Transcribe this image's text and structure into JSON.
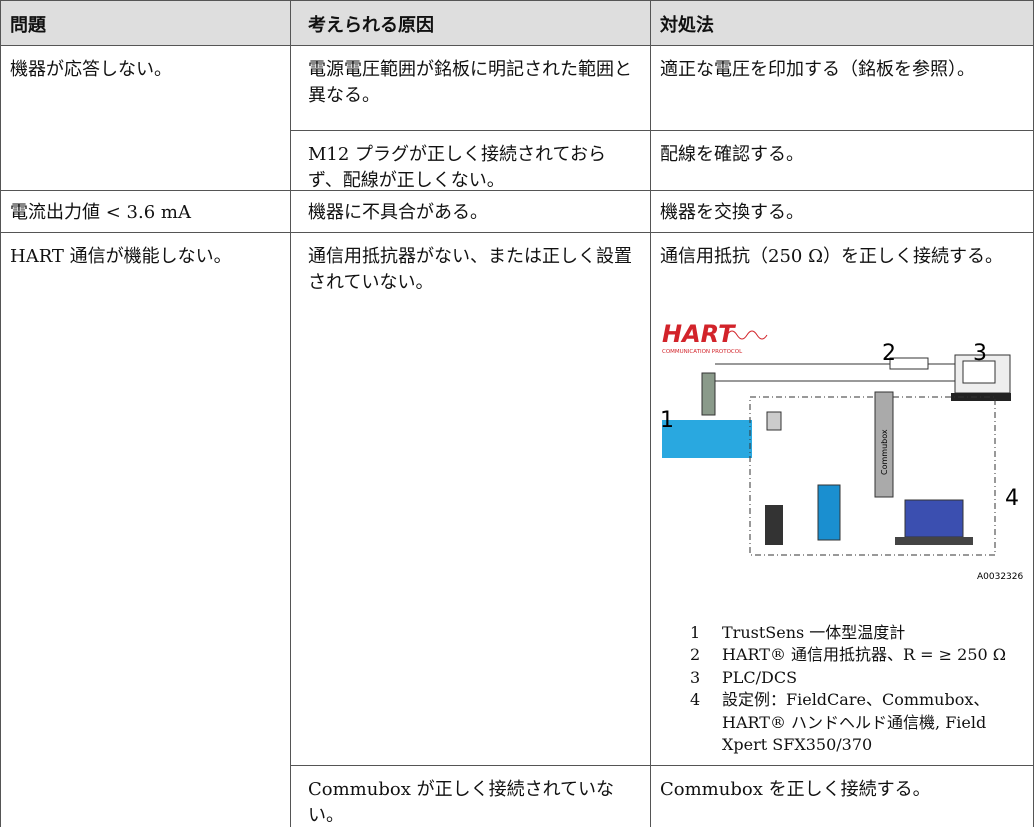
{
  "table": {
    "header": [
      "問題",
      "考えられる原因",
      "対処法"
    ],
    "rows": [
      {
        "problem": "機器が応答しない。",
        "causes": [
          {
            "cause": "電源電圧範囲が銘板に明記された範囲と異なる。",
            "remedy": "適正な電圧を印加する（銘板を参照）。"
          },
          {
            "cause": "M12 プラグが正しく接続されておらず、配線が正しくない。",
            "remedy": "配線を確認する。"
          }
        ]
      },
      {
        "problem": "電流出力値 < 3.6 mA",
        "causes": [
          {
            "cause": "機器に不具合がある。",
            "remedy": "機器を交換する。"
          }
        ]
      },
      {
        "problem": "HART 通信が機能しない。",
        "causes": [
          {
            "cause": "通信用抵抗器がない、または正しく設置されていない。",
            "remedy": "通信用抵抗（250 Ω）を正しく接続する。"
          },
          {
            "cause": "Commubox が正しく接続されていない。",
            "remedy": "Commubox を正しく接続する。"
          }
        ]
      }
    ]
  },
  "figure": {
    "logo": "HART",
    "logo_subtitle": "COMMUNICATION PROTOCOL",
    "callouts": [
      "1",
      "2",
      "3",
      "4"
    ],
    "device_label": "Commubox",
    "figure_id": "A0032326",
    "legend": [
      {
        "number": "1",
        "text": "TrustSens 一体型温度計"
      },
      {
        "number": "2",
        "text": "HART® 通信用抵抗器、R = ≥ 250 Ω"
      },
      {
        "number": "3",
        "text": "PLC/DCS"
      },
      {
        "number": "4",
        "text": "設定例：FieldCare、Commubox、HART® ハンドヘルド通信機, Field Xpert SFX350/370"
      }
    ]
  }
}
